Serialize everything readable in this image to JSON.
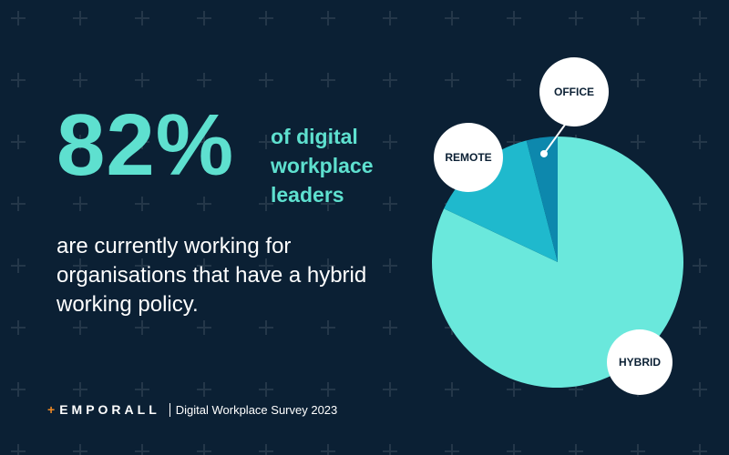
{
  "colors": {
    "background": "#0b2034",
    "accent": "#5ee0cf",
    "hybrid": "#6ae8dc",
    "remote": "#1fb9cd",
    "office": "#0d88ad",
    "label_bubble": "#ffffff",
    "body_text": "#ffffff",
    "logo_plus": "#f08a24"
  },
  "headline": {
    "stat": "82%",
    "stat_sub": "of digital workplace leaders"
  },
  "body": {
    "text": "are currently working for organisations that have a hybrid working policy."
  },
  "footer": {
    "logo_text": "EMPORALL",
    "logo_plus": "+",
    "source": "Digital Workplace Survey 2023"
  },
  "background_icon": "plus-icon",
  "chart_data": {
    "type": "pie",
    "title": "",
    "series": [
      {
        "values": [
          82,
          14,
          4
        ]
      }
    ],
    "categories": [
      "HYBRID",
      "REMOTE",
      "OFFICE"
    ],
    "start": "12 o'clock, clockwise",
    "labels_style": "white circle bubbles"
  }
}
